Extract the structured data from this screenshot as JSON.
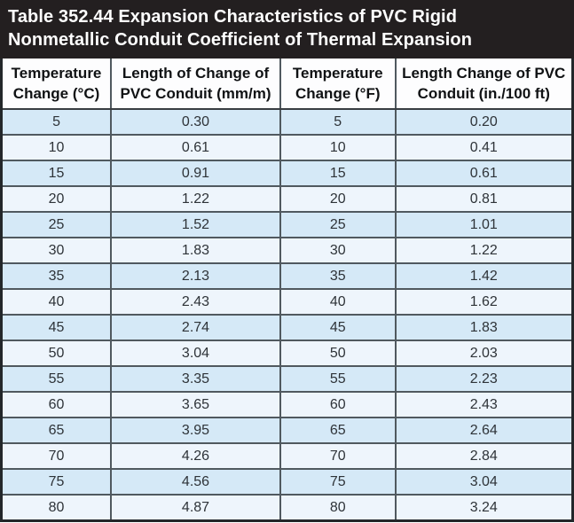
{
  "title": "Table 352.44 Expansion Characteristics of PVC Rigid Nonmetallic Conduit Coefficient of Thermal Expansion",
  "colors": {
    "title_background": "#231f20",
    "title_text": "#ffffff",
    "header_background": "#fdfdfe",
    "row_blue": "#d5e9f7",
    "row_light": "#eef5fc",
    "cell_border": "#50595f",
    "outer_border": "#23272a",
    "cell_text": "#2e3338"
  },
  "chart_data": {
    "type": "table",
    "title": "Table 352.44 Expansion Characteristics of PVC Rigid Nonmetallic Conduit Coefficient of Thermal Expansion",
    "columns": [
      "Temperature Change (°C)",
      "Length of Change of PVC Conduit (mm/m)",
      "Temperature Change (°F)",
      "Length Change of PVC Conduit (in./100 ft)"
    ],
    "rows": [
      [
        "5",
        "0.30",
        "5",
        "0.20"
      ],
      [
        "10",
        "0.61",
        "10",
        "0.41"
      ],
      [
        "15",
        "0.91",
        "15",
        "0.61"
      ],
      [
        "20",
        "1.22",
        "20",
        "0.81"
      ],
      [
        "25",
        "1.52",
        "25",
        "1.01"
      ],
      [
        "30",
        "1.83",
        "30",
        "1.22"
      ],
      [
        "35",
        "2.13",
        "35",
        "1.42"
      ],
      [
        "40",
        "2.43",
        "40",
        "1.62"
      ],
      [
        "45",
        "2.74",
        "45",
        "1.83"
      ],
      [
        "50",
        "3.04",
        "50",
        "2.03"
      ],
      [
        "55",
        "3.35",
        "55",
        "2.23"
      ],
      [
        "60",
        "3.65",
        "60",
        "2.43"
      ],
      [
        "65",
        "3.95",
        "65",
        "2.64"
      ],
      [
        "70",
        "4.26",
        "70",
        "2.84"
      ],
      [
        "75",
        "4.56",
        "75",
        "3.04"
      ],
      [
        "80",
        "4.87",
        "80",
        "3.24"
      ]
    ]
  }
}
